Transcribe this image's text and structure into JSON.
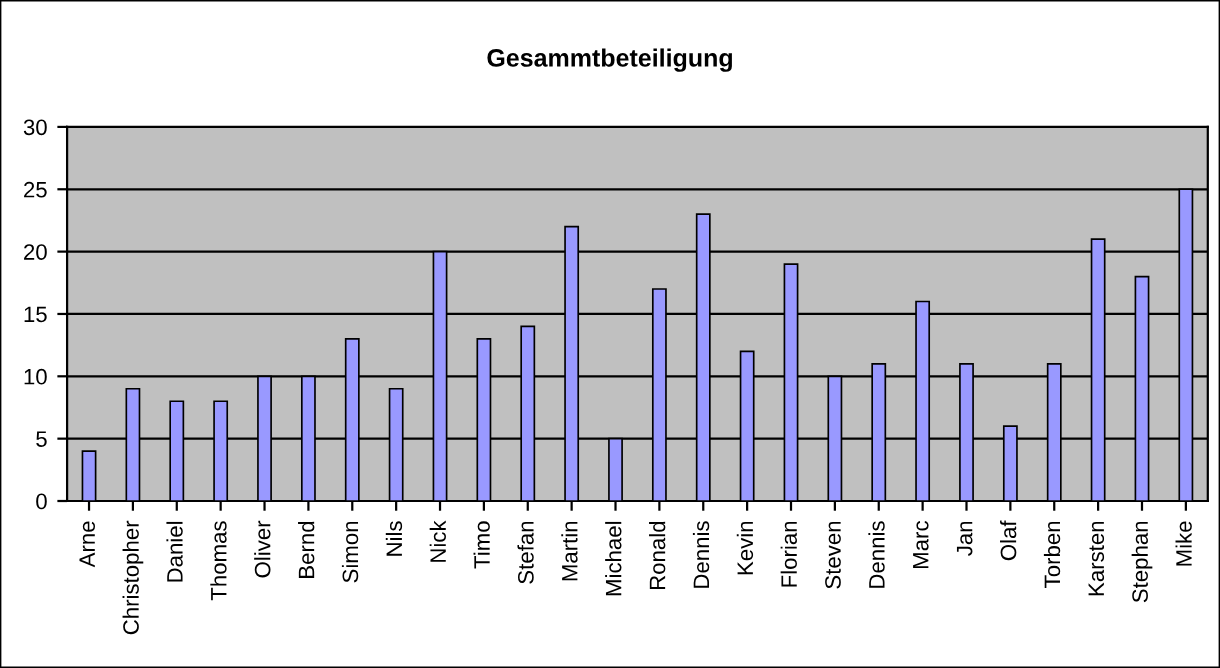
{
  "chart_data": {
    "type": "bar",
    "title": "Gesammtbeteiligung",
    "categories": [
      "Arne",
      "Christopher",
      "Daniel",
      "Thomas",
      "Oliver",
      "Bernd",
      "Simon",
      "Nils",
      "Nick",
      "Timo",
      "Stefan",
      "Martin",
      "Michael",
      "Ronald",
      "Dennis",
      "Kevin",
      "Florian",
      "Steven",
      "Dennis",
      "Marc",
      "Jan",
      "Olaf",
      "Torben",
      "Karsten",
      "Stephan",
      "Mike"
    ],
    "values": [
      4,
      9,
      8,
      8,
      10,
      10,
      13,
      9,
      20,
      13,
      14,
      22,
      5,
      17,
      23,
      12,
      19,
      10,
      11,
      16,
      11,
      6,
      11,
      21,
      18,
      25
    ],
    "color": "#9999ff",
    "ylim": [
      0,
      30
    ],
    "yticks": [
      0,
      5,
      10,
      15,
      20,
      25,
      30
    ],
    "grid": "y",
    "legend": false
  }
}
